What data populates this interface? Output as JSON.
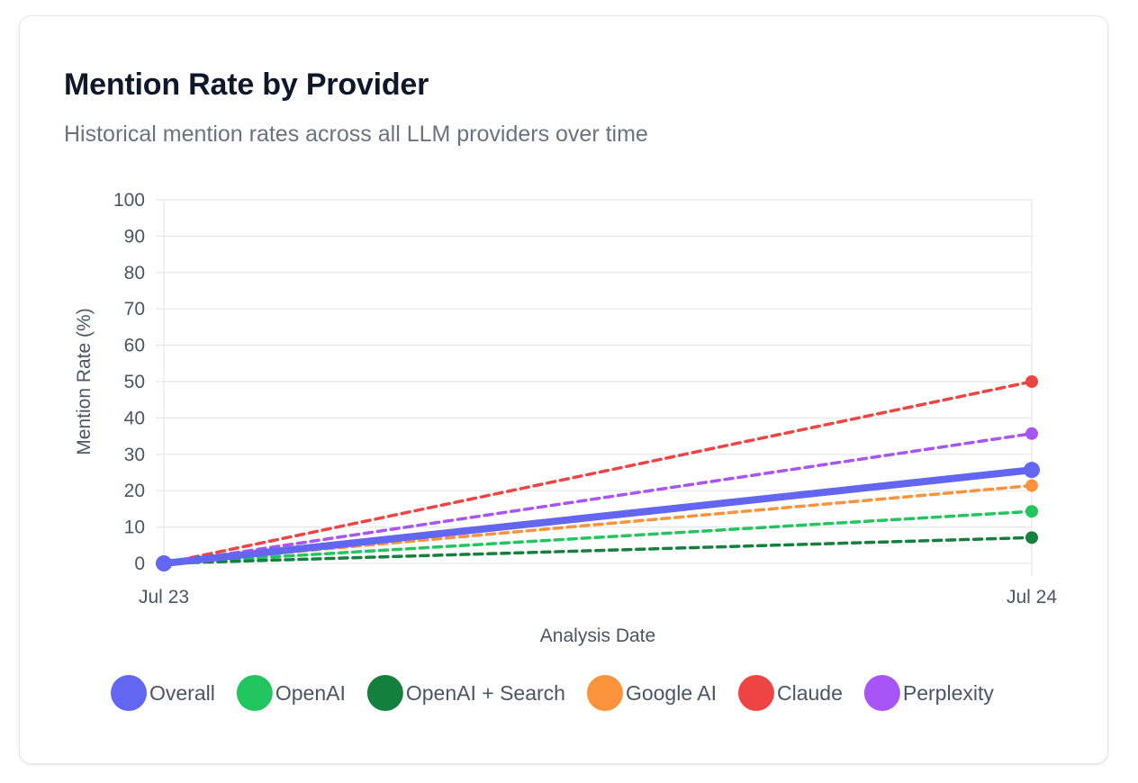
{
  "card": {
    "title": "Mention Rate by Provider",
    "subtitle": "Historical mention rates across all LLM providers over time"
  },
  "chart_data": {
    "type": "line",
    "x": [
      "Jul 23",
      "Jul 24"
    ],
    "xlabel": "Analysis Date",
    "ylabel": "Mention Rate (%)",
    "ylim": [
      0,
      100
    ],
    "yticks": [
      0,
      10,
      20,
      30,
      40,
      50,
      60,
      70,
      80,
      90,
      100
    ],
    "grid": true,
    "legend_position": "bottom",
    "series": [
      {
        "name": "Overall",
        "values": [
          0,
          25.7
        ],
        "color": "#6366f1",
        "style": "solid"
      },
      {
        "name": "OpenAI",
        "values": [
          0,
          14.3
        ],
        "color": "#22c55e",
        "style": "dashed"
      },
      {
        "name": "OpenAI + Search",
        "values": [
          0,
          7.1
        ],
        "color": "#15803d",
        "style": "dashed"
      },
      {
        "name": "Google AI",
        "values": [
          0,
          21.4
        ],
        "color": "#fb923c",
        "style": "dashed"
      },
      {
        "name": "Claude",
        "values": [
          0,
          50
        ],
        "color": "#ef4444",
        "style": "dashed"
      },
      {
        "name": "Perplexity",
        "values": [
          0,
          35.7
        ],
        "color": "#a855f7",
        "style": "dashed"
      }
    ]
  }
}
